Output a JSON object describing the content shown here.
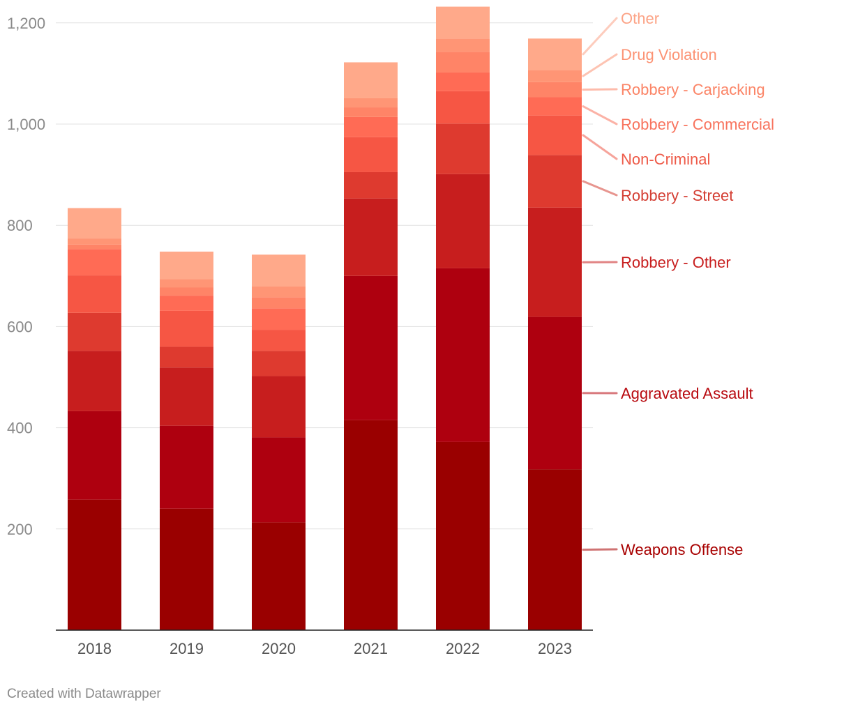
{
  "chart_data": {
    "type": "bar",
    "stacked": true,
    "title": "",
    "xlabel": "",
    "ylabel": "",
    "ylim": [
      0,
      1200
    ],
    "y_ticks": [
      200,
      400,
      600,
      800,
      1000,
      1200
    ],
    "y_tick_labels": [
      "200",
      "400",
      "600",
      "800",
      "1,000",
      "1,200"
    ],
    "grid": true,
    "legend": "inline-right",
    "categories": [
      "2018",
      "2019",
      "2020",
      "2021",
      "2022",
      "2023"
    ],
    "series": [
      {
        "name": "Weapons Offense",
        "color": "#9a0000",
        "values": [
          258,
          240,
          213,
          415,
          372,
          318
        ]
      },
      {
        "name": "Aggravated Assault",
        "color": "#ae000f",
        "values": [
          175,
          164,
          168,
          285,
          343,
          301
        ]
      },
      {
        "name": "Robbery - Other",
        "color": "#c71e1e",
        "values": [
          119,
          115,
          121,
          153,
          186,
          216
        ]
      },
      {
        "name": "Robbery - Street",
        "color": "#de3a2f",
        "values": [
          75,
          41,
          50,
          52,
          100,
          104
        ]
      },
      {
        "name": "Non-Criminal",
        "color": "#f65644",
        "values": [
          74,
          71,
          41,
          69,
          64,
          78
        ]
      },
      {
        "name": "Robbery - Commercial",
        "color": "#ff6b55",
        "values": [
          52,
          30,
          43,
          40,
          37,
          36
        ]
      },
      {
        "name": "Robbery - Carjacking",
        "color": "#ff8467",
        "values": [
          9,
          16,
          22,
          19,
          41,
          30
        ]
      },
      {
        "name": "Drug Violation",
        "color": "#ff9575",
        "values": [
          12,
          17,
          21,
          18,
          26,
          24
        ]
      },
      {
        "name": "Other",
        "color": "#ffa98a",
        "values": [
          60,
          54,
          63,
          71,
          63,
          62
        ]
      }
    ],
    "label_colors": [
      "#a80000",
      "#b80a10",
      "#c81e1e",
      "#d43e33",
      "#ee5a48",
      "#f8735d",
      "#fb8466",
      "#fc9273",
      "#fca386"
    ]
  },
  "footer": {
    "credit": "Created with Datawrapper"
  }
}
